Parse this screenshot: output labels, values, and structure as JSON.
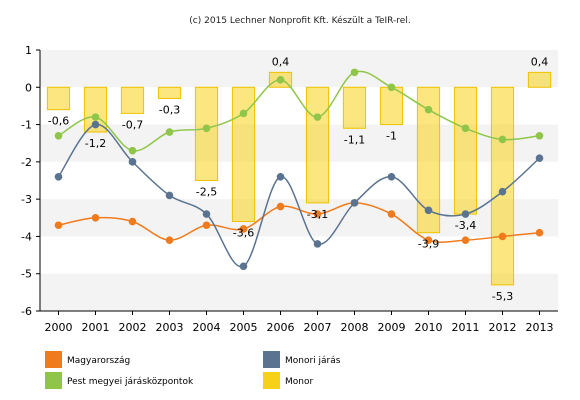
{
  "chart_data": {
    "type": "bar",
    "title": "(c) 2015 Lechner Nonprofit Kft. Készült a TeIR-rel.",
    "categories": [
      "2000",
      "2001",
      "2002",
      "2003",
      "2004",
      "2005",
      "2006",
      "2007",
      "2008",
      "2009",
      "2010",
      "2011",
      "2012",
      "2013"
    ],
    "ylim": [
      -6,
      1
    ],
    "yticks": [
      1,
      0,
      -1,
      -2,
      -3,
      -4,
      -5,
      -6
    ],
    "grid": "horizontal-bands",
    "legend_position": "bottom",
    "bar_series": {
      "name": "Monor",
      "color": "#f7d117",
      "values": [
        -0.6,
        -1.2,
        -0.7,
        -0.3,
        -2.5,
        -3.6,
        0.4,
        -3.1,
        -1.1,
        -1,
        -3.9,
        -3.4,
        -5.3,
        0.4
      ],
      "labels": [
        "-0,6",
        "-1,2",
        "-0,7",
        "-0,3",
        "-2,5",
        "-3,6",
        "0,4",
        "-3,1",
        "-1,1",
        "-1",
        "-3,9",
        "-3,4",
        "-5,3",
        "0,4"
      ]
    },
    "line_series": [
      {
        "name": "Magyarország",
        "color": "#f07b1c",
        "values": [
          -3.7,
          -3.5,
          -3.6,
          -4.1,
          -3.7,
          -3.8,
          -3.2,
          -3.4,
          -3.1,
          -3.4,
          -4.1,
          -4.1,
          -4.0,
          -3.9
        ]
      },
      {
        "name": "Monori járás",
        "color": "#5a7391",
        "values": [
          -2.4,
          -1.0,
          -2.0,
          -2.9,
          -3.4,
          -4.8,
          -2.4,
          -4.2,
          -3.1,
          -2.4,
          -3.3,
          -3.4,
          -2.8,
          -1.9
        ]
      },
      {
        "name": "Pest megyei járásközpontok",
        "color": "#8fc64a",
        "values": [
          -1.3,
          -0.8,
          -1.7,
          -1.2,
          -1.1,
          -0.7,
          0.2,
          -0.8,
          0.4,
          0.0,
          -0.6,
          -1.1,
          -1.4,
          -1.3
        ]
      }
    ],
    "legend": [
      {
        "name": "Magyarország",
        "color": "#f07b1c"
      },
      {
        "name": "Monori járás",
        "color": "#5a7391"
      },
      {
        "name": "Pest megyei járásközpontok",
        "color": "#8fc64a"
      },
      {
        "name": "Monor",
        "color": "#f7d117"
      }
    ]
  }
}
